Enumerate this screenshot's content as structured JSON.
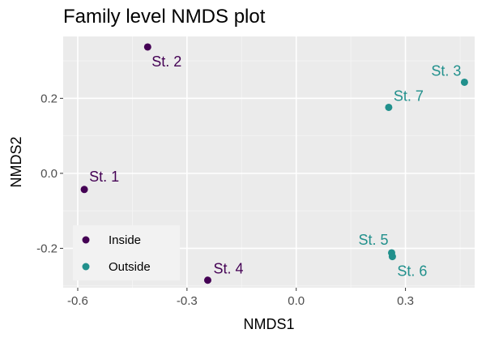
{
  "chart_data": {
    "type": "scatter",
    "title": "Family level NMDS plot",
    "xlabel": "NMDS1",
    "ylabel": "NMDS2",
    "xlim": [
      -0.64,
      0.49
    ],
    "ylim": [
      -0.305,
      0.365
    ],
    "xticks": [
      -0.6,
      -0.3,
      0.0,
      0.3
    ],
    "xtick_labels": [
      "-0.6",
      "-0.3",
      "0.0",
      "0.3"
    ],
    "yticks": [
      -0.2,
      0.0,
      0.2
    ],
    "ytick_labels": [
      "-0.2",
      "0.0",
      "0.2"
    ],
    "grid": true,
    "legend_position": "bottom-left inside",
    "series": [
      {
        "name": "Inside",
        "color": "#440154",
        "points": [
          {
            "label": "St. 1",
            "x": -0.582,
            "y": -0.043
          },
          {
            "label": "St. 2",
            "x": -0.408,
            "y": 0.337
          },
          {
            "label": "St. 4",
            "x": -0.243,
            "y": -0.285
          }
        ]
      },
      {
        "name": "Outside",
        "color": "#21908C",
        "points": [
          {
            "label": "St. 3",
            "x": 0.462,
            "y": 0.243
          },
          {
            "label": "St. 7",
            "x": 0.254,
            "y": 0.176
          },
          {
            "label": "St. 5",
            "x": 0.262,
            "y": -0.212
          },
          {
            "label": "St. 6",
            "x": 0.264,
            "y": -0.222
          }
        ]
      }
    ]
  }
}
